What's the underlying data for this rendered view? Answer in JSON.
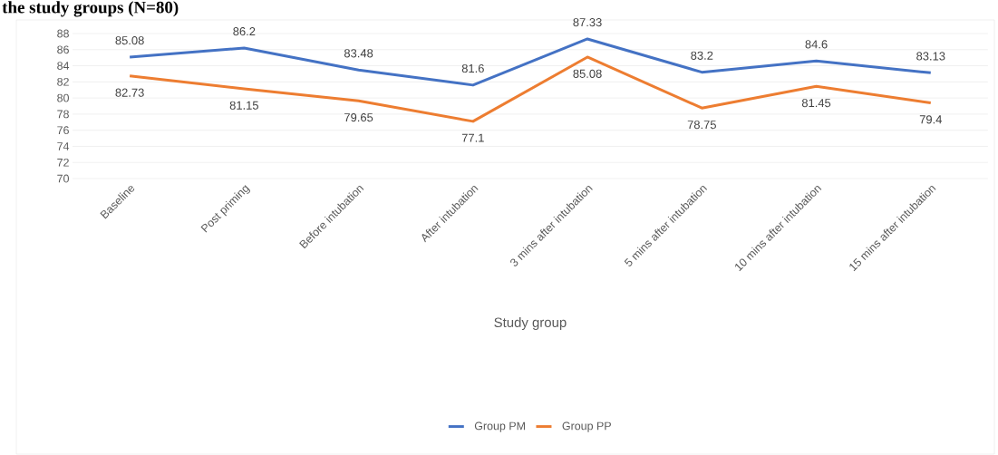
{
  "chart_data": {
    "type": "line",
    "title": "the study groups (N=80)",
    "xlabel": "Study group",
    "categories": [
      "Baseline",
      "Post priming",
      "Before intubation",
      "After intubation",
      "3 mins after intubation",
      "5 mins after intubation",
      "10 mins after intubation",
      "15 mins after intubation"
    ],
    "series": [
      {
        "name": "Group PM",
        "color": "#4472c4",
        "values": [
          85.08,
          86.2,
          83.48,
          81.6,
          87.33,
          83.2,
          84.6,
          83.13
        ]
      },
      {
        "name": "Group PP",
        "color": "#ed7d31",
        "values": [
          82.73,
          81.15,
          79.65,
          77.1,
          85.08,
          78.75,
          81.45,
          79.4
        ]
      }
    ],
    "ylim": [
      70,
      88
    ],
    "yticks": [
      70,
      72,
      74,
      76,
      78,
      80,
      82,
      84,
      86,
      88
    ],
    "grid": "y",
    "legend": "bottom",
    "data_labels": true,
    "marker": "none",
    "line_style": "solid"
  }
}
